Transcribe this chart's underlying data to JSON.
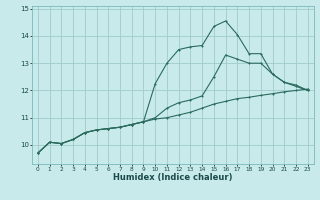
{
  "xlabel": "Humidex (Indice chaleur)",
  "bg_color": "#c8eaea",
  "grid_color": "#a0cccc",
  "line_color": "#2a6b5e",
  "xlim": [
    -0.5,
    23.5
  ],
  "ylim": [
    9.3,
    15.1
  ],
  "xticks": [
    0,
    1,
    2,
    3,
    4,
    5,
    6,
    7,
    8,
    9,
    10,
    11,
    12,
    13,
    14,
    15,
    16,
    17,
    18,
    19,
    20,
    21,
    22,
    23
  ],
  "yticks": [
    10,
    11,
    12,
    13,
    14,
    15
  ],
  "line1_x": [
    0,
    1,
    2,
    3,
    4,
    5,
    6,
    7,
    8,
    9,
    10,
    11,
    12,
    13,
    14,
    15,
    16,
    17,
    18,
    19,
    20,
    21,
    22,
    23
  ],
  "line1_y": [
    9.7,
    10.1,
    10.05,
    10.2,
    10.45,
    10.55,
    10.6,
    10.65,
    10.75,
    10.85,
    10.95,
    11.0,
    11.1,
    11.2,
    11.35,
    11.5,
    11.6,
    11.7,
    11.75,
    11.82,
    11.88,
    11.95,
    12.0,
    12.05
  ],
  "line2_x": [
    0,
    1,
    2,
    3,
    4,
    5,
    6,
    7,
    8,
    9,
    10,
    11,
    12,
    13,
    14,
    15,
    16,
    17,
    18,
    19,
    20,
    21,
    22,
    23
  ],
  "line2_y": [
    9.7,
    10.1,
    10.05,
    10.2,
    10.45,
    10.55,
    10.6,
    10.65,
    10.75,
    10.85,
    12.25,
    13.0,
    13.5,
    13.6,
    13.65,
    14.35,
    14.55,
    14.05,
    13.35,
    13.35,
    12.6,
    12.3,
    12.15,
    12.0
  ],
  "line3_x": [
    0,
    1,
    2,
    3,
    4,
    5,
    6,
    7,
    8,
    9,
    10,
    11,
    12,
    13,
    14,
    15,
    16,
    17,
    18,
    19,
    20,
    21,
    22,
    23
  ],
  "line3_y": [
    9.7,
    10.1,
    10.05,
    10.2,
    10.45,
    10.55,
    10.6,
    10.65,
    10.75,
    10.85,
    11.0,
    11.35,
    11.55,
    11.65,
    11.8,
    12.5,
    13.3,
    13.15,
    13.0,
    13.0,
    12.6,
    12.3,
    12.2,
    12.0
  ]
}
